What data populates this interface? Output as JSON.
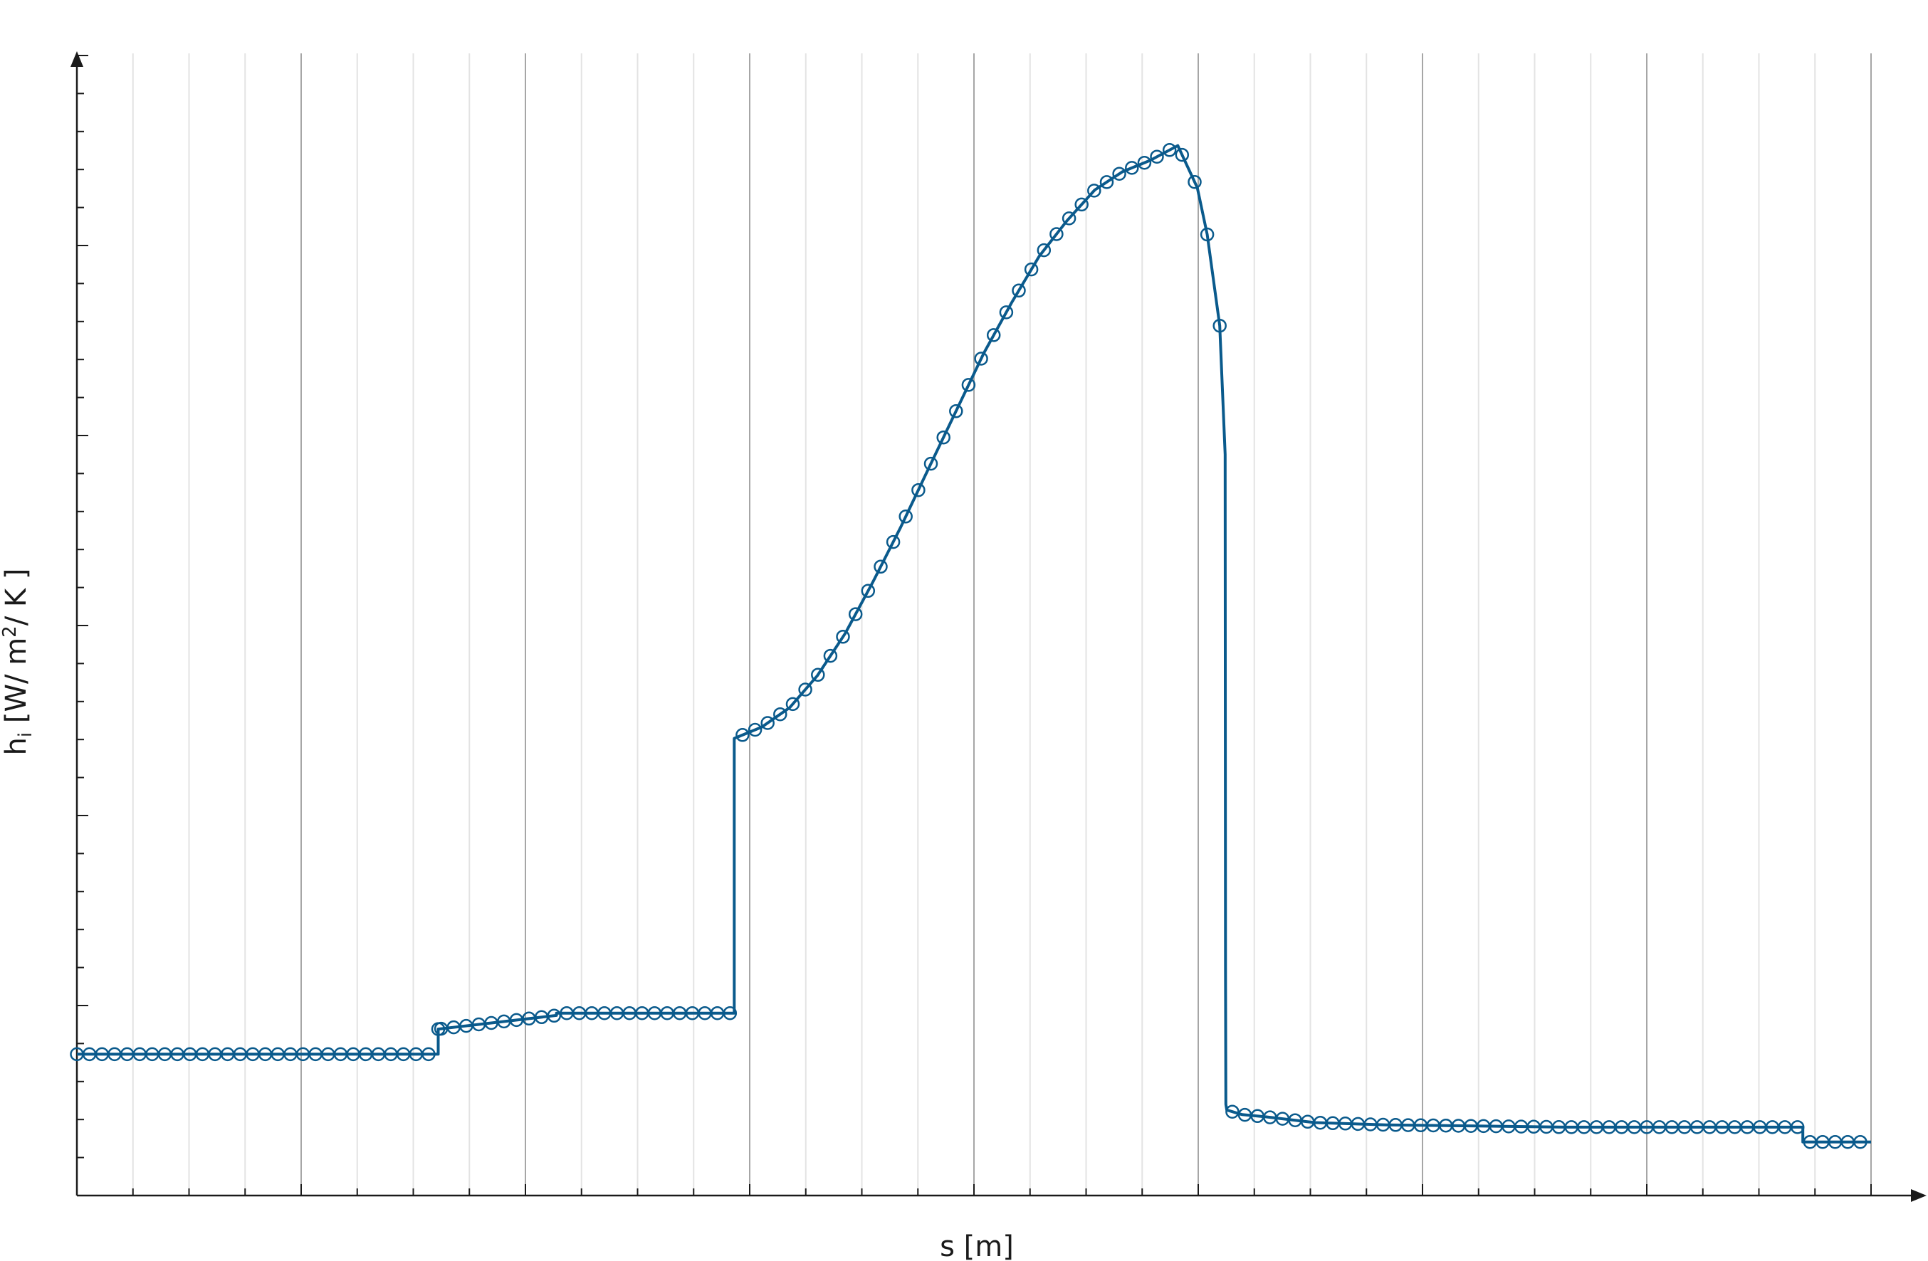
{
  "chart_data": {
    "type": "line",
    "title": "",
    "xlabel": "s [m]",
    "ylabel_main": "h",
    "ylabel_sub": "i",
    "ylabel_units_a": " [W/ m",
    "ylabel_units_sup": "2",
    "ylabel_units_b": "/ K ]",
    "xlim": [
      0,
      1
    ],
    "ylim": [
      0,
      1
    ],
    "grid": "vertical",
    "x_major_count": 8,
    "x_minor_per_major": 4,
    "y_major_count": 6,
    "y_minor_per_major": 5,
    "colors": {
      "line": "#0a5a8c",
      "axis": "#1a1a1a",
      "grid_major": "#a6a6a6",
      "grid_minor": "#e3e3e3"
    },
    "series": [
      {
        "marker": "circle",
        "x": [
          0,
          0.2014,
          0.2014,
          0.2673,
          0.2673,
          0.3664,
          0.3664,
          0.3818,
          0.3973,
          0.4127,
          0.4282,
          0.4436,
          0.4591,
          0.4745,
          0.49,
          0.5055,
          0.5209,
          0.5364,
          0.5518,
          0.5673,
          0.5827,
          0.5982,
          0.6136,
          0.6245,
          0.63,
          0.637,
          0.64,
          0.6402,
          0.6404,
          0.6409,
          0.6495,
          0.663,
          0.69,
          0.73,
          0.78,
          0.83,
          0.88,
          0.93,
          0.962,
          0.962,
          1.0
        ],
        "y": [
          0.124,
          0.124,
          0.146,
          0.158,
          0.16,
          0.16,
          0.401,
          0.411,
          0.428,
          0.456,
          0.493,
          0.538,
          0.586,
          0.637,
          0.688,
          0.739,
          0.783,
          0.824,
          0.855,
          0.882,
          0.898,
          0.908,
          0.921,
          0.884,
          0.843,
          0.763,
          0.65,
          0.2,
          0.08,
          0.075,
          0.071,
          0.069,
          0.064,
          0.062,
          0.061,
          0.06,
          0.06,
          0.06,
          0.06,
          0.047,
          0.047
        ],
        "marker_x": [
          0,
          0.007,
          0.014,
          0.021,
          0.028,
          0.035,
          0.042,
          0.049,
          0.056,
          0.063,
          0.07,
          0.077,
          0.084,
          0.091,
          0.098,
          0.105,
          0.112,
          0.119,
          0.126,
          0.133,
          0.14,
          0.147,
          0.154,
          0.161,
          0.168,
          0.175,
          0.182,
          0.189,
          0.196,
          0.2014,
          0.203,
          0.21,
          0.217,
          0.224,
          0.231,
          0.238,
          0.245,
          0.252,
          0.259,
          0.266,
          0.273,
          0.28,
          0.287,
          0.294,
          0.301,
          0.308,
          0.315,
          0.322,
          0.329,
          0.336,
          0.343,
          0.35,
          0.357,
          0.364,
          0.371,
          0.378,
          0.385,
          0.392,
          0.399,
          0.406,
          0.413,
          0.42,
          0.427,
          0.434,
          0.441,
          0.448,
          0.455,
          0.462,
          0.469,
          0.476,
          0.483,
          0.49,
          0.497,
          0.504,
          0.511,
          0.518,
          0.525,
          0.532,
          0.539,
          0.546,
          0.553,
          0.56,
          0.567,
          0.574,
          0.581,
          0.588,
          0.595,
          0.602,
          0.609,
          0.616,
          0.623,
          0.63,
          0.637,
          0.644,
          0.651,
          0.658,
          0.665,
          0.672,
          0.679,
          0.686,
          0.693,
          0.7,
          0.707,
          0.714,
          0.721,
          0.728,
          0.735,
          0.742,
          0.749,
          0.756,
          0.763,
          0.77,
          0.777,
          0.784,
          0.791,
          0.798,
          0.805,
          0.812,
          0.819,
          0.826,
          0.833,
          0.84,
          0.847,
          0.854,
          0.861,
          0.868,
          0.875,
          0.882,
          0.889,
          0.896,
          0.903,
          0.91,
          0.917,
          0.924,
          0.931,
          0.938,
          0.945,
          0.952,
          0.959,
          0.966,
          0.973,
          0.98,
          0.987,
          0.994
        ]
      }
    ]
  }
}
